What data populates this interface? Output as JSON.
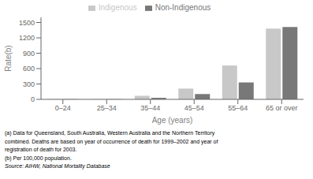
{
  "chart_data": {
    "type": "bar",
    "categories": [
      "0–24",
      "25–34",
      "35–44",
      "45–54",
      "55–64",
      "65 or over"
    ],
    "series": [
      {
        "name": "Indigenous",
        "color": "#c8c8c8",
        "values": [
          5,
          5,
          70,
          210,
          660,
          1380
        ]
      },
      {
        "name": "Non-Indigenous",
        "color": "#787878",
        "values": [
          4,
          4,
          30,
          105,
          330,
          1410
        ]
      }
    ],
    "xlabel": "Age (years)",
    "ylabel": "Rate(b)",
    "ylim": [
      0,
      1600
    ],
    "yticks": [
      0,
      300,
      600,
      900,
      1200,
      1500
    ],
    "legend": "top",
    "annotations": [
      "(a) Data for Queensland, South Australia, Western Australia and the Northern Territory",
      "combined.  Deaths are based on year of occurrence of death for 1999–2002 and year of",
      "registration of death for 2003.",
      "(b) Per 100,000 population.",
      "Source: AIHW, National Mortality Database"
    ]
  }
}
